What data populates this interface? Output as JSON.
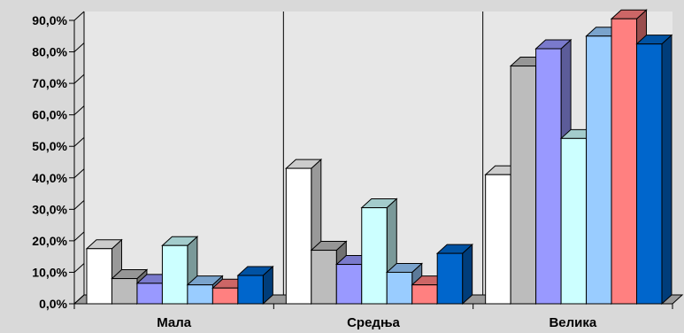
{
  "chart_data": {
    "type": "bar",
    "categories": [
      "Мала",
      "Средња",
      "Велика"
    ],
    "series": [
      {
        "color": "#ffffff",
        "values": [
          17.5,
          43.0,
          41.0
        ]
      },
      {
        "color": "#bcbcbc",
        "values": [
          8.0,
          17.0,
          75.5
        ]
      },
      {
        "color": "#9999ff",
        "values": [
          6.5,
          12.5,
          81.0
        ]
      },
      {
        "color": "#ccffff",
        "values": [
          18.5,
          30.5,
          52.5
        ]
      },
      {
        "color": "#99ccff",
        "values": [
          6.0,
          10.0,
          85.0
        ]
      },
      {
        "color": "#ff8080",
        "values": [
          5.0,
          6.0,
          90.5
        ]
      },
      {
        "color": "#0066cc",
        "values": [
          9.0,
          16.0,
          82.5
        ]
      }
    ],
    "y_ticks": [
      "0,0%",
      "10,0%",
      "20,0%",
      "30,0%",
      "40,0%",
      "50,0%",
      "60,0%",
      "70,0%",
      "80,0%",
      "90,0%"
    ],
    "ylim": [
      0,
      90
    ],
    "title": "",
    "xlabel": "",
    "ylabel": "",
    "legend": "none",
    "grid": "vertical category separators"
  }
}
